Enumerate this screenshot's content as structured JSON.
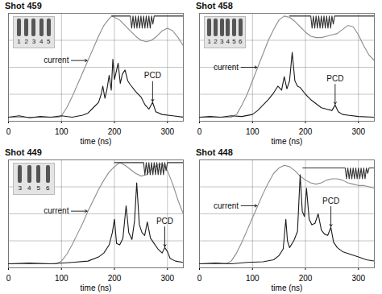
{
  "chart_data": [
    {
      "type": "line",
      "title": "Shot 459",
      "xlabel": "time (ns)",
      "xlim": [
        0,
        330
      ],
      "xticks": [
        0,
        100,
        200,
        300
      ],
      "ylim": [
        0,
        8
      ],
      "yticks": [
        0,
        2,
        4,
        6,
        8
      ],
      "grid": true,
      "tick_labels": "x",
      "inset_labels": [
        "1",
        "2",
        "3",
        "4",
        "5"
      ],
      "series": [
        {
          "color": "#8c8c8c",
          "line_style": "solid",
          "x": [
            0,
            95,
            100,
            110,
            120,
            130,
            140,
            150,
            160,
            170,
            180,
            190,
            195,
            200,
            210,
            220,
            230,
            240,
            250,
            260,
            270,
            280,
            290,
            300,
            310,
            320,
            330
          ],
          "values": [
            0.3,
            0.3,
            0.4,
            1.0,
            1.8,
            2.7,
            3.6,
            4.5,
            5.4,
            6.3,
            7.1,
            7.6,
            7.8,
            7.7,
            7.5,
            7.1,
            6.7,
            6.3,
            6.0,
            5.9,
            6.0,
            6.3,
            6.7,
            6.9,
            6.7,
            6.2,
            5.6
          ]
        },
        {
          "color": "#1a1a1a",
          "line_style": "solid",
          "x": [
            0,
            20,
            40,
            60,
            80,
            100,
            120,
            140,
            150,
            160,
            170,
            175,
            178,
            182,
            186,
            190,
            194,
            197,
            200,
            203,
            207,
            211,
            215,
            220,
            225,
            230,
            240,
            250,
            258,
            265,
            272,
            278,
            290,
            310,
            330
          ],
          "values": [
            0.3,
            0.4,
            0.25,
            0.35,
            0.3,
            0.4,
            0.3,
            0.45,
            0.6,
            1.0,
            1.4,
            2.0,
            2.6,
            1.7,
            2.4,
            3.4,
            2.3,
            4.6,
            3.1,
            3.6,
            4.3,
            2.8,
            3.5,
            3.8,
            3.0,
            2.7,
            2.2,
            1.8,
            1.2,
            0.9,
            1.4,
            0.7,
            0.5,
            0.4,
            0.3
          ]
        },
        {
          "color": "#333333",
          "line_style": "solid",
          "x": [
            195,
            230,
            232.5,
            235,
            237.5,
            240,
            242.5,
            245,
            247.5,
            250,
            252.5,
            255,
            257.5,
            260,
            262.5,
            265,
            267.5,
            270,
            272.5,
            275,
            330
          ],
          "values": [
            7.8,
            7.8,
            6.9,
            7.8,
            6.9,
            7.8,
            6.9,
            7.8,
            6.9,
            7.8,
            6.9,
            7.8,
            6.9,
            7.8,
            6.9,
            7.8,
            6.9,
            7.8,
            7.2,
            7.8,
            7.8
          ]
        }
      ],
      "annotations": [
        {
          "text": "current",
          "x": 150,
          "y": 4.5
        },
        {
          "text": "PCD",
          "x": 272,
          "y": 1.4
        }
      ]
    },
    {
      "type": "line",
      "title": "Shot 458",
      "xlabel": "time (ns)",
      "xlim": [
        0,
        330
      ],
      "xticks": [
        0,
        100,
        200,
        300
      ],
      "ylim": [
        0,
        8
      ],
      "yticks": [
        0,
        2,
        4,
        6,
        8
      ],
      "grid": true,
      "tick_labels": "x",
      "inset_labels": [
        "1",
        "2",
        "3",
        "4",
        "5",
        "6"
      ],
      "series": [
        {
          "color": "#8c8c8c",
          "line_style": "solid",
          "x": [
            0,
            60,
            70,
            80,
            90,
            100,
            110,
            120,
            130,
            140,
            150,
            160,
            170,
            180,
            190,
            200,
            210,
            220,
            230,
            240,
            250,
            260,
            270,
            280,
            290,
            300,
            310,
            320,
            330
          ],
          "values": [
            0.3,
            0.3,
            0.5,
            1.2,
            2.0,
            3.0,
            4.0,
            5.0,
            6.0,
            6.8,
            7.5,
            7.8,
            7.7,
            7.4,
            7.0,
            6.6,
            6.3,
            6.2,
            6.2,
            6.3,
            6.4,
            6.5,
            6.8,
            7.1,
            7.0,
            6.4,
            5.6,
            4.9,
            4.5
          ]
        },
        {
          "color": "#1a1a1a",
          "line_style": "solid",
          "x": [
            0,
            20,
            40,
            60,
            80,
            100,
            110,
            120,
            130,
            140,
            148,
            155,
            160,
            165,
            170,
            175,
            180,
            185,
            190,
            200,
            210,
            220,
            230,
            240,
            250,
            256,
            262,
            270,
            280,
            300,
            330
          ],
          "values": [
            0.3,
            0.35,
            0.3,
            0.4,
            0.35,
            0.5,
            0.8,
            1.2,
            1.6,
            2.1,
            2.6,
            2.3,
            3.3,
            2.4,
            3.0,
            5.1,
            3.0,
            2.6,
            2.5,
            2.0,
            1.6,
            1.3,
            1.0,
            0.9,
            0.8,
            1.2,
            0.7,
            0.5,
            0.45,
            0.35,
            0.3
          ]
        },
        {
          "color": "#333333",
          "line_style": "solid",
          "x": [
            170,
            210,
            212.5,
            215,
            217.5,
            220,
            222.5,
            225,
            227.5,
            230,
            232.5,
            235,
            237.5,
            240,
            242.5,
            245,
            247.5,
            250,
            252.5,
            255,
            330
          ],
          "values": [
            7.8,
            7.8,
            6.9,
            7.8,
            6.9,
            7.8,
            6.9,
            7.8,
            6.9,
            7.8,
            6.9,
            7.8,
            6.9,
            7.8,
            6.9,
            7.8,
            6.9,
            7.8,
            7.2,
            7.8,
            7.8
          ]
        }
      ],
      "annotations": [
        {
          "text": "current",
          "x": 110,
          "y": 4.0
        },
        {
          "text": "PCD",
          "x": 256,
          "y": 1.2
        }
      ]
    },
    {
      "type": "line",
      "title": "Shot 449",
      "xlabel": "time (ns)",
      "xlim": [
        0,
        330
      ],
      "xticks": [
        0,
        100,
        200,
        300
      ],
      "ylim": [
        0,
        8
      ],
      "yticks": [
        0,
        2,
        4,
        6,
        8
      ],
      "grid": true,
      "tick_labels": "x",
      "inset_labels": [
        "3",
        "4",
        "5",
        "6"
      ],
      "series": [
        {
          "color": "#8c8c8c",
          "line_style": "solid",
          "x": [
            0,
            90,
            100,
            110,
            120,
            130,
            140,
            150,
            160,
            170,
            180,
            190,
            200,
            210,
            220,
            230,
            240,
            250,
            260,
            270,
            280,
            290,
            300,
            310,
            320,
            330
          ],
          "values": [
            0.3,
            0.3,
            0.5,
            1.0,
            1.7,
            2.5,
            3.3,
            4.2,
            5.0,
            5.8,
            6.5,
            7.1,
            7.5,
            7.8,
            7.6,
            7.3,
            7.0,
            6.8,
            6.9,
            7.3,
            7.6,
            7.7,
            7.2,
            6.2,
            5.0,
            4.0
          ]
        },
        {
          "color": "#1a1a1a",
          "line_style": "solid",
          "x": [
            0,
            40,
            80,
            120,
            150,
            170,
            180,
            190,
            196,
            200,
            204,
            210,
            216,
            222,
            227,
            233,
            238,
            242,
            247,
            252,
            257,
            262,
            268,
            275,
            282,
            290,
            295,
            300,
            305,
            315,
            330
          ],
          "values": [
            0.3,
            0.35,
            0.3,
            0.4,
            0.5,
            0.8,
            1.1,
            1.7,
            2.6,
            3.6,
            1.8,
            1.7,
            2.2,
            4.6,
            2.6,
            2.1,
            3.5,
            6.3,
            3.2,
            2.6,
            2.4,
            3.4,
            2.2,
            1.8,
            1.4,
            1.1,
            1.5,
            1.2,
            0.7,
            0.5,
            0.4
          ]
        },
        {
          "color": "#333333",
          "line_style": "solid",
          "x": [
            200,
            255,
            257.5,
            260,
            262.5,
            265,
            267.5,
            270,
            272.5,
            275,
            277.5,
            280,
            282.5,
            285,
            287.5,
            290,
            292.5,
            295,
            297.5,
            300,
            330
          ],
          "values": [
            7.8,
            7.8,
            6.9,
            7.8,
            6.9,
            7.8,
            6.9,
            7.8,
            6.9,
            7.8,
            6.9,
            7.8,
            6.9,
            7.8,
            6.9,
            7.8,
            6.9,
            7.8,
            7.2,
            7.8,
            7.8
          ]
        }
      ],
      "annotations": [
        {
          "text": "current",
          "x": 150,
          "y": 4.2
        },
        {
          "text": "PCD",
          "x": 295,
          "y": 1.5
        }
      ]
    },
    {
      "type": "line",
      "title": "Shot 448",
      "xlabel": "time (ns)",
      "xlim": [
        0,
        330
      ],
      "xticks": [
        0,
        100,
        200,
        300
      ],
      "ylim": [
        0,
        8
      ],
      "yticks": [
        0,
        2,
        4,
        6,
        8
      ],
      "grid": true,
      "tick_labels": "x",
      "inset_labels": [],
      "series": [
        {
          "color": "#8c8c8c",
          "line_style": "solid",
          "x": [
            0,
            50,
            60,
            70,
            80,
            90,
            100,
            110,
            120,
            130,
            140,
            150,
            160,
            170,
            180,
            190,
            200,
            210,
            220,
            230,
            240,
            250,
            260,
            270,
            280,
            290,
            300,
            310,
            320,
            330
          ],
          "values": [
            0.3,
            0.3,
            0.5,
            1.1,
            1.9,
            2.8,
            3.7,
            4.6,
            5.5,
            6.3,
            7.0,
            7.4,
            7.6,
            7.5,
            7.2,
            6.8,
            6.5,
            6.3,
            6.2,
            6.3,
            6.5,
            6.6,
            6.6,
            6.5,
            6.3,
            6.2,
            6.1,
            6.1,
            6.0,
            5.9
          ]
        },
        {
          "color": "#1a1a1a",
          "line_style": "solid",
          "x": [
            0,
            30,
            60,
            90,
            120,
            140,
            150,
            158,
            163,
            166,
            170,
            178,
            185,
            190,
            194,
            198,
            202,
            207,
            212,
            218,
            224,
            230,
            236,
            242,
            248,
            253,
            260,
            270,
            285,
            300,
            315,
            330
          ],
          "values": [
            0.3,
            0.35,
            0.3,
            0.4,
            0.45,
            0.6,
            0.9,
            1.4,
            3.6,
            2.0,
            1.5,
            2.0,
            2.7,
            6.9,
            4.2,
            3.8,
            5.9,
            3.6,
            3.2,
            3.3,
            4.0,
            2.8,
            2.5,
            2.4,
            3.0,
            1.9,
            1.5,
            1.2,
            1.0,
            0.8,
            0.6,
            0.5
          ]
        },
        {
          "color": "#333333",
          "line_style": "solid",
          "x": [
            195,
            275,
            277.5,
            280,
            282.5,
            285,
            287.5,
            290,
            292.5,
            295,
            297.5,
            300,
            302.5,
            305,
            307.5,
            310,
            312.5,
            315,
            317.5,
            320,
            330
          ],
          "values": [
            7.4,
            7.4,
            6.6,
            7.4,
            6.6,
            7.4,
            6.6,
            7.4,
            6.6,
            7.4,
            6.6,
            7.4,
            6.6,
            7.4,
            6.6,
            7.4,
            6.6,
            7.4,
            7.0,
            7.4,
            7.4
          ]
        }
      ],
      "annotations": [
        {
          "text": "current",
          "x": 110,
          "y": 4.6
        },
        {
          "text": "PCD",
          "x": 248,
          "y": 3.0
        }
      ]
    }
  ]
}
